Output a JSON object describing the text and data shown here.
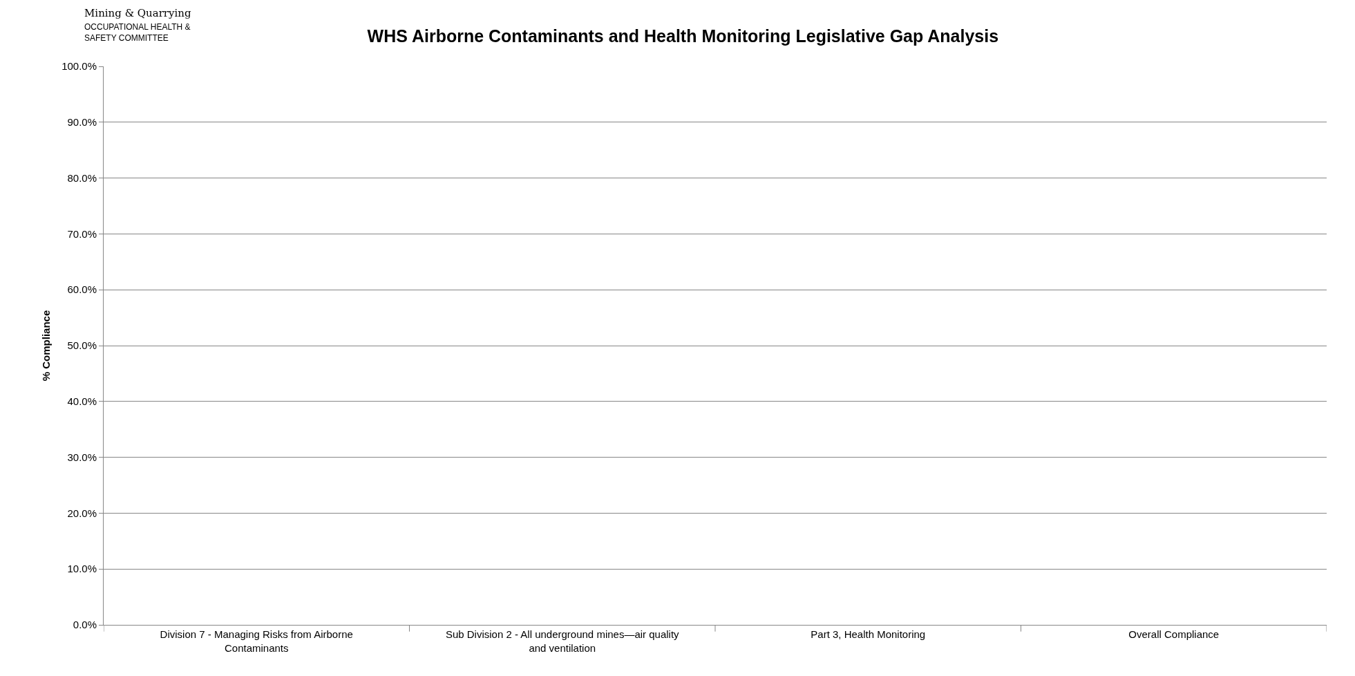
{
  "chart_data": {
    "type": "bar",
    "title": "WHS Airborne Contaminants and Health Monitoring Legislative Gap Analysis",
    "ylabel": "% Compliance",
    "annotations": [
      "Mining & Quarrying",
      "OCCUPATIONAL HEALTH &",
      "SAFETY COMMITTEE"
    ],
    "categories": [
      "Division 7 - Managing Risks from Airborne Contaminants",
      "Sub Division 2 - All underground mines—air quality and ventilation",
      "Part 3, Health Monitoring",
      "Overall Compliance"
    ],
    "values": [
      null,
      null,
      null,
      null
    ],
    "ylim": [
      0,
      100
    ],
    "yticks": [
      {
        "value": 0,
        "label": "0.0%"
      },
      {
        "value": 10,
        "label": "10.0%"
      },
      {
        "value": 20,
        "label": "20.0%"
      },
      {
        "value": 30,
        "label": "30.0%"
      },
      {
        "value": 40,
        "label": "40.0%"
      },
      {
        "value": 50,
        "label": "50.0%"
      },
      {
        "value": 60,
        "label": "60.0%"
      },
      {
        "value": 70,
        "label": "70.0%"
      },
      {
        "value": 80,
        "label": "80.0%"
      },
      {
        "value": 90,
        "label": "90.0%"
      },
      {
        "value": 100,
        "label": "100.0%"
      }
    ],
    "grid": "y",
    "legend": false
  }
}
